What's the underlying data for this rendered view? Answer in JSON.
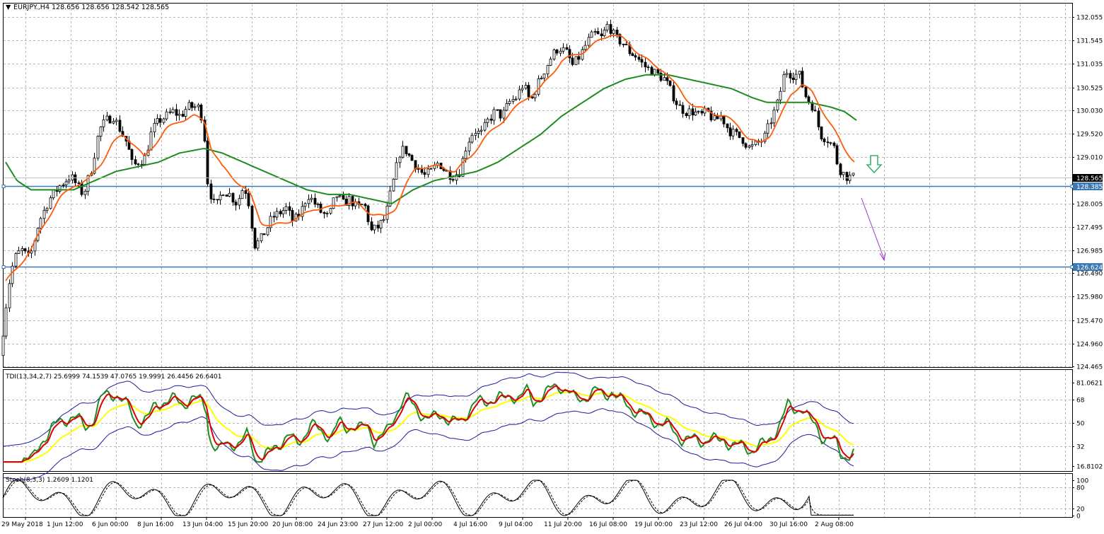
{
  "symbol_header": {
    "dropdown_glyph": "▼",
    "text": "EURJPY.,H4  128.656 128.656 128.542 128.565"
  },
  "price_axis": {
    "labels": [
      "132.055",
      "131.545",
      "131.035",
      "130.525",
      "130.030",
      "129.520",
      "129.010",
      "128.005",
      "127.495",
      "126.985",
      "126.490",
      "125.980",
      "125.470",
      "124.960",
      "124.465"
    ],
    "values": [
      132.055,
      131.545,
      131.035,
      130.525,
      130.03,
      129.52,
      129.01,
      128.005,
      127.495,
      126.985,
      126.49,
      125.98,
      125.47,
      124.96,
      124.465
    ],
    "current_price_label": "128.565",
    "current_price": 128.565,
    "current_price_color": "#000000",
    "hline_labels": [
      "128.385",
      "126.624"
    ],
    "hline_values": [
      128.385,
      126.624
    ],
    "hline_color": "#3c78b4"
  },
  "time_axis": {
    "labels": [
      "29 May 2018",
      "1 Jun 12:00",
      "6 Jun 00:00",
      "8 Jun 16:00",
      "13 Jun 04:00",
      "15 Jun 20:00",
      "20 Jun 08:00",
      "24 Jun 23:00",
      "27 Jun 12:00",
      "2 Jul 00:00",
      "4 Jul 16:00",
      "9 Jul 04:00",
      "11 Jul 20:00",
      "16 Jul 08:00",
      "19 Jul 00:00",
      "23 Jul 12:00",
      "26 Jul 04:00",
      "30 Jul 16:00",
      "2 Aug 08:00"
    ]
  },
  "tdi_panel": {
    "label": "TDI(13,34,2,7) 25.6999 74.1539 47.0765 19.9991 26.4456 26.6401",
    "axis_labels": [
      "81.0621",
      "68",
      "50",
      "32",
      "16.8102"
    ],
    "axis_values": [
      81.0621,
      68,
      50,
      32,
      16.8102
    ],
    "colors": {
      "bands": "#1c1ca0",
      "mid": "#ffff00",
      "rsi": "#228b22",
      "signal": "#dd0000"
    }
  },
  "stoch_panel": {
    "label": "Stoch(8,3,3) 1.2609 1.1201",
    "axis_labels": [
      "100",
      "80",
      "20",
      "0"
    ],
    "axis_values": [
      100,
      80,
      20,
      0
    ]
  },
  "annotations": {
    "down_arrow_color": "#3cb371",
    "trend_arrow_color": "#9932cc"
  },
  "chart_data": {
    "type": "candlestick",
    "symbol": "EURJPY.",
    "timeframe": "H4",
    "ylim": [
      124.465,
      132.2
    ],
    "grid": true,
    "close_path": [
      [
        0,
        124.7
      ],
      [
        5,
        125.3
      ],
      [
        12,
        126.2
      ],
      [
        20,
        126.8
      ],
      [
        30,
        127.0
      ],
      [
        42,
        126.8
      ],
      [
        55,
        127.6
      ],
      [
        70,
        128.1
      ],
      [
        85,
        128.4
      ],
      [
        100,
        128.6
      ],
      [
        118,
        128.2
      ],
      [
        130,
        128.8
      ],
      [
        140,
        129.6
      ],
      [
        150,
        129.8
      ],
      [
        160,
        129.9
      ],
      [
        170,
        129.6
      ],
      [
        180,
        129.3
      ],
      [
        188,
        128.8
      ],
      [
        195,
        128.9
      ],
      [
        205,
        129.0
      ],
      [
        215,
        129.6
      ],
      [
        225,
        129.8
      ],
      [
        235,
        129.9
      ],
      [
        245,
        130.0
      ],
      [
        255,
        129.9
      ],
      [
        265,
        130.1
      ],
      [
        280,
        130.1
      ],
      [
        288,
        129.8
      ],
      [
        292,
        128.6
      ],
      [
        298,
        128.2
      ],
      [
        305,
        127.9
      ],
      [
        315,
        128.3
      ],
      [
        325,
        128.2
      ],
      [
        335,
        128.0
      ],
      [
        345,
        128.4
      ],
      [
        352,
        128.0
      ],
      [
        360,
        127.1
      ],
      [
        368,
        127.2
      ],
      [
        375,
        127.4
      ],
      [
        385,
        127.7
      ],
      [
        395,
        127.8
      ],
      [
        405,
        127.9
      ],
      [
        415,
        127.6
      ],
      [
        425,
        127.8
      ],
      [
        435,
        128.2
      ],
      [
        445,
        128.0
      ],
      [
        455,
        127.8
      ],
      [
        465,
        127.7
      ],
      [
        475,
        128.2
      ],
      [
        485,
        128.0
      ],
      [
        495,
        128.1
      ],
      [
        505,
        127.9
      ],
      [
        515,
        128.0
      ],
      [
        525,
        127.4
      ],
      [
        535,
        127.5
      ],
      [
        545,
        127.7
      ],
      [
        552,
        128.2
      ],
      [
        558,
        128.6
      ],
      [
        565,
        129.1
      ],
      [
        572,
        129.2
      ],
      [
        580,
        129.0
      ],
      [
        590,
        128.8
      ],
      [
        600,
        128.6
      ],
      [
        610,
        128.7
      ],
      [
        620,
        128.9
      ],
      [
        630,
        128.7
      ],
      [
        640,
        128.6
      ],
      [
        650,
        128.7
      ],
      [
        660,
        129.3
      ],
      [
        670,
        129.6
      ],
      [
        680,
        129.5
      ],
      [
        690,
        129.8
      ],
      [
        700,
        130.0
      ],
      [
        710,
        129.9
      ],
      [
        720,
        130.2
      ],
      [
        730,
        130.3
      ],
      [
        740,
        130.6
      ],
      [
        750,
        130.2
      ],
      [
        760,
        130.6
      ],
      [
        770,
        130.9
      ],
      [
        780,
        131.2
      ],
      [
        790,
        131.4
      ],
      [
        800,
        131.3
      ],
      [
        810,
        131.0
      ],
      [
        820,
        131.2
      ],
      [
        830,
        131.5
      ],
      [
        840,
        131.7
      ],
      [
        850,
        131.6
      ],
      [
        860,
        131.9
      ],
      [
        870,
        131.6
      ],
      [
        880,
        131.5
      ],
      [
        890,
        131.3
      ],
      [
        900,
        131.2
      ],
      [
        910,
        131.0
      ],
      [
        920,
        130.9
      ],
      [
        930,
        130.8
      ],
      [
        940,
        130.7
      ],
      [
        950,
        130.4
      ],
      [
        960,
        130.1
      ],
      [
        970,
        130.0
      ],
      [
        980,
        130.0
      ],
      [
        990,
        129.9
      ],
      [
        1000,
        130.0
      ],
      [
        1010,
        129.8
      ],
      [
        1020,
        129.9
      ],
      [
        1030,
        129.6
      ],
      [
        1040,
        129.5
      ],
      [
        1050,
        129.4
      ],
      [
        1060,
        129.2
      ],
      [
        1070,
        129.3
      ],
      [
        1080,
        129.4
      ],
      [
        1090,
        129.8
      ],
      [
        1100,
        130.2
      ],
      [
        1110,
        130.9
      ],
      [
        1120,
        130.8
      ],
      [
        1130,
        130.8
      ],
      [
        1140,
        130.3
      ],
      [
        1150,
        130.1
      ],
      [
        1160,
        129.5
      ],
      [
        1170,
        129.4
      ],
      [
        1180,
        129.2
      ],
      [
        1185,
        128.8
      ],
      [
        1195,
        128.6
      ],
      [
        1205,
        128.565
      ]
    ],
    "ema_fast_path": [
      [
        4,
        126.3
      ],
      [
        20,
        126.6
      ],
      [
        40,
        127.0
      ],
      [
        60,
        127.6
      ],
      [
        80,
        128.1
      ],
      [
        100,
        128.4
      ],
      [
        120,
        128.5
      ],
      [
        140,
        128.9
      ],
      [
        155,
        129.3
      ],
      [
        170,
        129.5
      ],
      [
        185,
        129.3
      ],
      [
        200,
        129.0
      ],
      [
        215,
        129.3
      ],
      [
        230,
        129.6
      ],
      [
        250,
        129.8
      ],
      [
        270,
        129.9
      ],
      [
        285,
        129.8
      ],
      [
        295,
        129.2
      ],
      [
        310,
        128.8
      ],
      [
        330,
        128.5
      ],
      [
        350,
        128.2
      ],
      [
        365,
        127.6
      ],
      [
        380,
        127.5
      ],
      [
        400,
        127.6
      ],
      [
        420,
        127.7
      ],
      [
        440,
        127.9
      ],
      [
        460,
        127.9
      ],
      [
        480,
        128.0
      ],
      [
        500,
        128.0
      ],
      [
        520,
        127.8
      ],
      [
        540,
        127.7
      ],
      [
        555,
        127.9
      ],
      [
        570,
        128.4
      ],
      [
        585,
        128.8
      ],
      [
        600,
        128.8
      ],
      [
        620,
        128.8
      ],
      [
        640,
        128.7
      ],
      [
        660,
        129.0
      ],
      [
        680,
        129.4
      ],
      [
        700,
        129.7
      ],
      [
        720,
        130.0
      ],
      [
        740,
        130.3
      ],
      [
        760,
        130.5
      ],
      [
        775,
        130.8
      ],
      [
        790,
        131.1
      ],
      [
        805,
        131.2
      ],
      [
        820,
        131.3
      ],
      [
        840,
        131.5
      ],
      [
        860,
        131.7
      ],
      [
        875,
        131.6
      ],
      [
        890,
        131.4
      ],
      [
        905,
        131.2
      ],
      [
        920,
        131.0
      ],
      [
        935,
        130.9
      ],
      [
        950,
        130.6
      ],
      [
        965,
        130.3
      ],
      [
        980,
        130.1
      ],
      [
        1000,
        130.0
      ],
      [
        1020,
        129.9
      ],
      [
        1040,
        129.7
      ],
      [
        1055,
        129.4
      ],
      [
        1070,
        129.3
      ],
      [
        1085,
        129.5
      ],
      [
        1100,
        129.9
      ],
      [
        1115,
        130.4
      ],
      [
        1130,
        130.6
      ],
      [
        1145,
        130.4
      ],
      [
        1160,
        130.0
      ],
      [
        1175,
        129.6
      ],
      [
        1190,
        129.2
      ],
      [
        1205,
        128.9
      ]
    ],
    "ema_slow_path": [
      [
        4,
        128.9
      ],
      [
        20,
        128.5
      ],
      [
        40,
        128.3
      ],
      [
        70,
        128.3
      ],
      [
        100,
        128.3
      ],
      [
        130,
        128.5
      ],
      [
        160,
        128.7
      ],
      [
        190,
        128.8
      ],
      [
        220,
        128.9
      ],
      [
        250,
        129.1
      ],
      [
        285,
        129.2
      ],
      [
        310,
        129.1
      ],
      [
        340,
        128.9
      ],
      [
        370,
        128.7
      ],
      [
        400,
        128.5
      ],
      [
        430,
        128.3
      ],
      [
        460,
        128.2
      ],
      [
        490,
        128.2
      ],
      [
        520,
        128.1
      ],
      [
        550,
        128.0
      ],
      [
        580,
        128.3
      ],
      [
        610,
        128.5
      ],
      [
        640,
        128.6
      ],
      [
        670,
        128.7
      ],
      [
        700,
        128.9
      ],
      [
        730,
        129.2
      ],
      [
        760,
        129.5
      ],
      [
        790,
        129.9
      ],
      [
        820,
        130.2
      ],
      [
        850,
        130.5
      ],
      [
        880,
        130.7
      ],
      [
        910,
        130.8
      ],
      [
        940,
        130.8
      ],
      [
        970,
        130.7
      ],
      [
        1000,
        130.6
      ],
      [
        1030,
        130.5
      ],
      [
        1060,
        130.3
      ],
      [
        1080,
        130.2
      ],
      [
        1110,
        130.2
      ],
      [
        1140,
        130.2
      ],
      [
        1170,
        130.1
      ],
      [
        1190,
        130.0
      ],
      [
        1208,
        129.8
      ]
    ]
  }
}
